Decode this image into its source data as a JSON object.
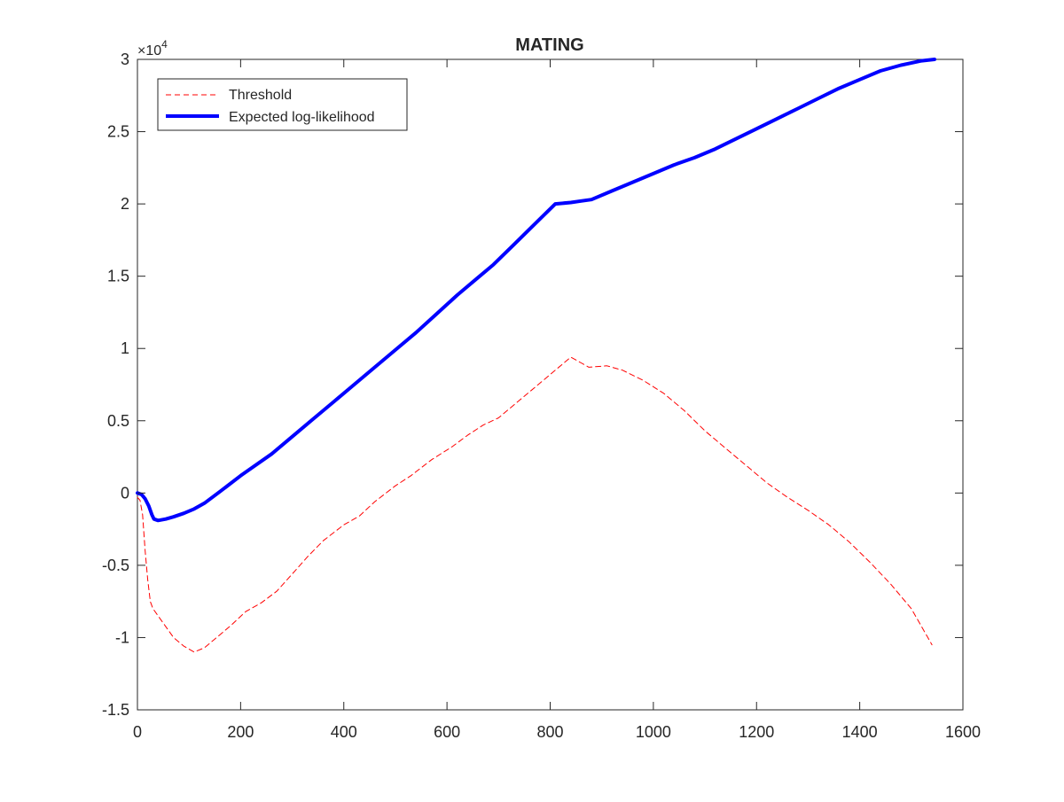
{
  "chart_data": {
    "type": "line",
    "title": "MATING",
    "xlabel": "",
    "ylabel": "",
    "xlim": [
      0,
      1600
    ],
    "ylim": [
      -15000,
      30000
    ],
    "y_exponent_label": "×10",
    "y_exponent_power": "4",
    "x_ticks": [
      0,
      200,
      400,
      600,
      800,
      1000,
      1200,
      1400,
      1600
    ],
    "x_tick_labels": [
      "0",
      "200",
      "400",
      "600",
      "800",
      "1000",
      "1200",
      "1400",
      "1600"
    ],
    "y_ticks": [
      -15000,
      -10000,
      -5000,
      0,
      5000,
      10000,
      15000,
      20000,
      25000,
      30000
    ],
    "y_tick_labels": [
      "-1.5",
      "-1",
      "-0.5",
      "0",
      "0.5",
      "1",
      "1.5",
      "2",
      "2.5",
      "3"
    ],
    "grid": false,
    "legend_position": "top-left",
    "series": [
      {
        "name": "Threshold",
        "color": "#ff0000",
        "style": "dashed",
        "points": [
          [
            0,
            -300
          ],
          [
            5,
            -500
          ],
          [
            10,
            -1500
          ],
          [
            15,
            -4000
          ],
          [
            20,
            -6000
          ],
          [
            25,
            -7500
          ],
          [
            30,
            -8000
          ],
          [
            50,
            -9000
          ],
          [
            70,
            -10000
          ],
          [
            90,
            -10600
          ],
          [
            110,
            -11000
          ],
          [
            130,
            -10700
          ],
          [
            150,
            -10100
          ],
          [
            180,
            -9200
          ],
          [
            210,
            -8200
          ],
          [
            240,
            -7600
          ],
          [
            270,
            -6800
          ],
          [
            300,
            -5600
          ],
          [
            330,
            -4400
          ],
          [
            360,
            -3300
          ],
          [
            400,
            -2200
          ],
          [
            430,
            -1600
          ],
          [
            460,
            -600
          ],
          [
            500,
            500
          ],
          [
            530,
            1200
          ],
          [
            570,
            2300
          ],
          [
            610,
            3200
          ],
          [
            640,
            4000
          ],
          [
            670,
            4700
          ],
          [
            700,
            5200
          ],
          [
            740,
            6400
          ],
          [
            780,
            7600
          ],
          [
            810,
            8500
          ],
          [
            840,
            9400
          ],
          [
            860,
            9000
          ],
          [
            875,
            8700
          ],
          [
            910,
            8800
          ],
          [
            940,
            8500
          ],
          [
            980,
            7800
          ],
          [
            1020,
            6900
          ],
          [
            1060,
            5700
          ],
          [
            1100,
            4300
          ],
          [
            1140,
            3100
          ],
          [
            1180,
            1900
          ],
          [
            1220,
            700
          ],
          [
            1260,
            -300
          ],
          [
            1300,
            -1200
          ],
          [
            1340,
            -2200
          ],
          [
            1380,
            -3400
          ],
          [
            1420,
            -4800
          ],
          [
            1460,
            -6300
          ],
          [
            1500,
            -8000
          ],
          [
            1540,
            -10500
          ]
        ]
      },
      {
        "name": "Expected log-likelihood",
        "color": "#0000ff",
        "style": "solid",
        "points": [
          [
            0,
            0
          ],
          [
            8,
            -100
          ],
          [
            15,
            -400
          ],
          [
            22,
            -900
          ],
          [
            28,
            -1500
          ],
          [
            32,
            -1800
          ],
          [
            40,
            -1900
          ],
          [
            55,
            -1800
          ],
          [
            70,
            -1650
          ],
          [
            90,
            -1400
          ],
          [
            110,
            -1100
          ],
          [
            130,
            -700
          ],
          [
            160,
            100
          ],
          [
            200,
            1200
          ],
          [
            220,
            1700
          ],
          [
            260,
            2700
          ],
          [
            300,
            3900
          ],
          [
            340,
            5100
          ],
          [
            380,
            6300
          ],
          [
            420,
            7500
          ],
          [
            460,
            8700
          ],
          [
            500,
            9900
          ],
          [
            540,
            11100
          ],
          [
            580,
            12400
          ],
          [
            620,
            13700
          ],
          [
            660,
            14900
          ],
          [
            690,
            15800
          ],
          [
            730,
            17200
          ],
          [
            770,
            18600
          ],
          [
            810,
            20000
          ],
          [
            840,
            20100
          ],
          [
            860,
            20200
          ],
          [
            880,
            20300
          ],
          [
            920,
            20900
          ],
          [
            960,
            21500
          ],
          [
            1000,
            22100
          ],
          [
            1040,
            22700
          ],
          [
            1080,
            23200
          ],
          [
            1120,
            23800
          ],
          [
            1160,
            24500
          ],
          [
            1200,
            25200
          ],
          [
            1240,
            25900
          ],
          [
            1280,
            26600
          ],
          [
            1320,
            27300
          ],
          [
            1360,
            28000
          ],
          [
            1400,
            28600
          ],
          [
            1440,
            29200
          ],
          [
            1480,
            29600
          ],
          [
            1520,
            29900
          ],
          [
            1545,
            30000
          ]
        ]
      }
    ]
  }
}
